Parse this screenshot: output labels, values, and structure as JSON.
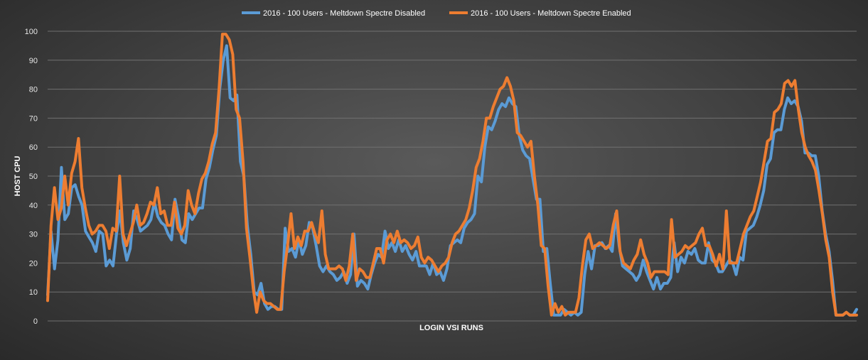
{
  "chart_data": {
    "type": "line",
    "xlabel": "LOGIN VSI RUNS",
    "ylabel": "HOST CPU",
    "ylim": [
      0,
      100
    ],
    "yticks": [
      0,
      10,
      20,
      30,
      40,
      50,
      60,
      70,
      80,
      90,
      100
    ],
    "grid": true,
    "legend_position": "top",
    "series": [
      {
        "name": "2016 - 100 Users - Meltdown Spectre Disabled",
        "color": "#5b9bd5",
        "values": [
          9,
          31,
          18,
          28,
          53,
          35,
          37,
          46,
          47,
          43,
          40,
          31,
          29,
          27,
          24,
          31,
          30,
          19,
          21,
          19,
          30,
          38,
          27,
          21,
          25,
          38,
          35,
          31,
          32,
          33,
          35,
          41,
          36,
          34,
          33,
          30,
          28,
          42,
          36,
          28,
          27,
          37,
          35,
          37,
          39,
          39,
          49,
          53,
          59,
          64,
          80,
          90,
          95,
          77,
          76,
          78,
          55,
          50,
          33,
          23,
          10,
          9,
          13,
          6,
          4,
          5,
          5,
          4,
          4,
          32,
          24,
          25,
          22,
          28,
          23,
          26,
          34,
          32,
          26,
          19,
          17,
          19,
          17,
          16,
          14,
          15,
          17,
          13,
          16,
          30,
          12,
          14,
          13,
          11,
          16,
          20,
          23,
          22,
          31,
          25,
          27,
          24,
          28,
          24,
          26,
          23,
          21,
          24,
          19,
          19,
          19,
          16,
          20,
          16,
          17,
          14,
          18,
          26,
          27,
          28,
          27,
          32,
          34,
          35,
          37,
          50,
          48,
          60,
          67,
          66,
          69,
          73,
          75,
          74,
          77,
          75,
          74,
          64,
          59,
          57,
          56,
          49,
          42,
          42,
          24,
          25,
          13,
          2,
          2,
          2,
          4,
          3,
          2,
          3,
          2,
          3,
          16,
          24,
          18,
          26,
          26,
          27,
          25,
          26,
          24,
          37,
          26,
          19,
          18,
          17,
          16,
          14,
          16,
          21,
          17,
          14,
          11,
          15,
          11,
          13,
          13,
          15,
          27,
          17,
          22,
          20,
          24,
          23,
          25,
          21,
          20,
          20,
          27,
          21,
          20,
          17,
          17,
          19,
          21,
          20,
          16,
          22,
          21,
          31,
          32,
          33,
          36,
          40,
          45,
          54,
          56,
          65,
          66,
          66,
          73,
          77,
          75,
          76,
          74,
          69,
          58,
          58,
          57,
          57,
          50,
          38,
          30,
          24,
          14,
          2,
          2,
          2,
          3,
          2,
          2,
          4
        ],
        "stroke_width": 4
      },
      {
        "name": "2016 - 100 Users - Meltdown Spectre Enabled",
        "color": "#ed7d31",
        "values": [
          7,
          33,
          46,
          35,
          39,
          50,
          40,
          51,
          55,
          63,
          46,
          39,
          33,
          30,
          31,
          33,
          33,
          31,
          25,
          32,
          31,
          50,
          30,
          26,
          30,
          34,
          40,
          33,
          34,
          37,
          41,
          40,
          46,
          37,
          38,
          33,
          33,
          41,
          32,
          30,
          33,
          45,
          40,
          37,
          44,
          49,
          51,
          55,
          61,
          65,
          80,
          99,
          99,
          97,
          92,
          73,
          70,
          55,
          32,
          22,
          11,
          3,
          10,
          7,
          6,
          6,
          5,
          4,
          4,
          17,
          26,
          37,
          25,
          29,
          26,
          31,
          31,
          34,
          30,
          27,
          38,
          23,
          18,
          18,
          18,
          19,
          18,
          14,
          19,
          30,
          14,
          18,
          17,
          15,
          15,
          20,
          25,
          25,
          20,
          28,
          30,
          27,
          31,
          27,
          28,
          27,
          25,
          26,
          29,
          22,
          20,
          22,
          21,
          19,
          17,
          19,
          20,
          22,
          27,
          30,
          31,
          33,
          35,
          39,
          45,
          53,
          56,
          62,
          70,
          70,
          74,
          77,
          80,
          81,
          84,
          81,
          76,
          65,
          64,
          62,
          60,
          62,
          50,
          40,
          26,
          25,
          12,
          2,
          6,
          3,
          5,
          2,
          3,
          3,
          3,
          8,
          19,
          28,
          30,
          25,
          26,
          27,
          26,
          25,
          26,
          33,
          38,
          24,
          20,
          19,
          18,
          21,
          23,
          28,
          23,
          20,
          15,
          17,
          17,
          17,
          17,
          16,
          35,
          22,
          23,
          24,
          26,
          25,
          26,
          27,
          30,
          32,
          26,
          26,
          23,
          19,
          23,
          18,
          38,
          20,
          20,
          20,
          25,
          30,
          33,
          36,
          38,
          43,
          48,
          55,
          62,
          63,
          72,
          73,
          75,
          82,
          83,
          81,
          83,
          73,
          65,
          60,
          57,
          55,
          52,
          45,
          37,
          28,
          22,
          10,
          2,
          2,
          2,
          3,
          2,
          2,
          2
        ],
        "stroke_width": 4
      }
    ]
  }
}
